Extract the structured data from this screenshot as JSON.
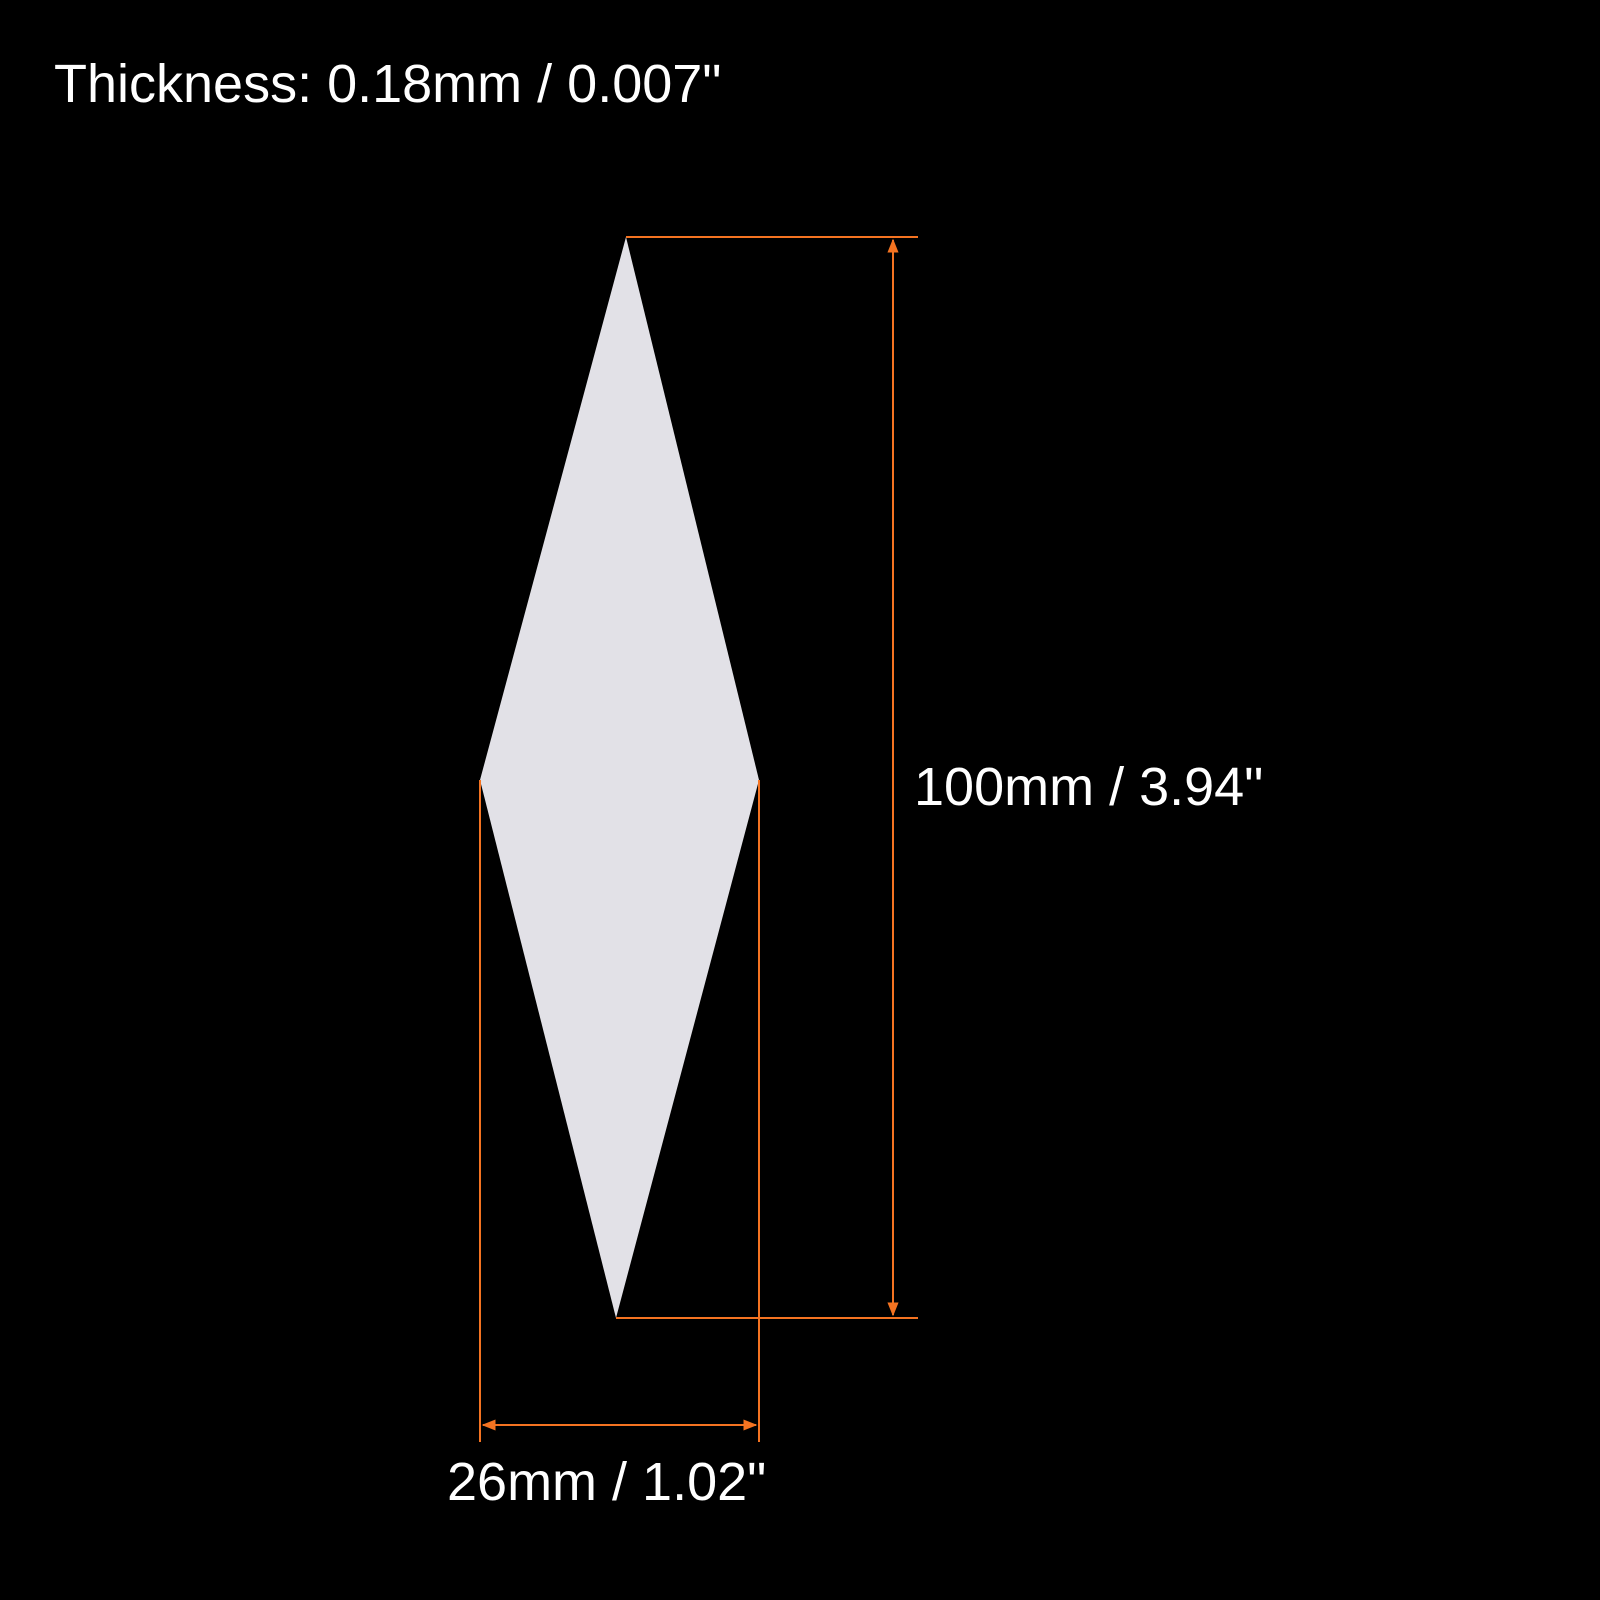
{
  "thickness_label": "Thickness: 0.18mm / 0.007\"",
  "dimensions": {
    "height_label": "100mm / 3.94\"",
    "width_label": "26mm / 1.02\""
  },
  "colors": {
    "background": "#000000",
    "shape_fill": "#e2e1e7",
    "dimension_line": "#f47321",
    "text": "#ffffff"
  }
}
